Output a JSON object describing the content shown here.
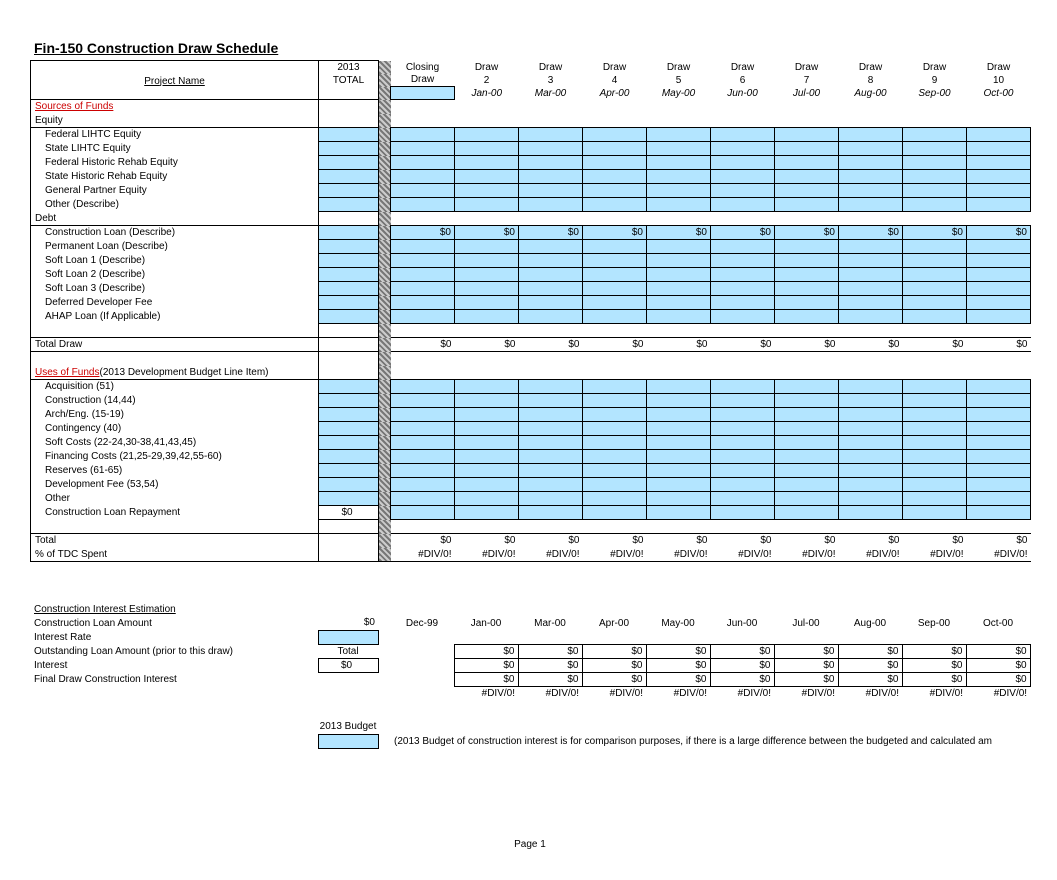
{
  "doc": {
    "title": "Fin-150 Construction Draw Schedule",
    "page_label": "Page 1",
    "project_name_label": "Project Name",
    "total_col_hdr1": "2013",
    "total_col_hdr2": "TOTAL",
    "draw_headers": [
      {
        "top": "Closing",
        "mid": "Draw",
        "bot": ""
      },
      {
        "top": "Draw",
        "mid": "2",
        "bot": "Jan-00"
      },
      {
        "top": "Draw",
        "mid": "3",
        "bot": "Mar-00"
      },
      {
        "top": "Draw",
        "mid": "4",
        "bot": "Apr-00"
      },
      {
        "top": "Draw",
        "mid": "5",
        "bot": "May-00"
      },
      {
        "top": "Draw",
        "mid": "6",
        "bot": "Jun-00"
      },
      {
        "top": "Draw",
        "mid": "7",
        "bot": "Jul-00"
      },
      {
        "top": "Draw",
        "mid": "8",
        "bot": "Aug-00"
      },
      {
        "top": "Draw",
        "mid": "9",
        "bot": "Sep-00"
      },
      {
        "top": "Draw",
        "mid": "10",
        "bot": "Oct-00"
      }
    ],
    "sources_hdr": "Sources of Funds",
    "equity_hdr": "Equity",
    "equity_rows": [
      "Federal LIHTC Equity",
      "State LIHTC Equity",
      "Federal Historic Rehab Equity",
      "State Historic Rehab Equity",
      "General Partner Equity",
      "Other (Describe)"
    ],
    "debt_hdr": "Debt",
    "debt_rows": [
      {
        "label": "Construction Loan (Describe)",
        "vals": [
          "$0",
          "$0",
          "$0",
          "$0",
          "$0",
          "$0",
          "$0",
          "$0",
          "$0",
          "$0"
        ]
      },
      {
        "label": "Permanent Loan (Describe)"
      },
      {
        "label": "Soft Loan 1 (Describe)"
      },
      {
        "label": "Soft Loan 2 (Describe)"
      },
      {
        "label": "Soft Loan 3 (Describe)"
      },
      {
        "label": "Deferred Developer Fee"
      },
      {
        "label": "AHAP Loan (If Applicable)"
      }
    ],
    "total_draw_label": "Total Draw",
    "total_draw_vals": [
      "$0",
      "$0",
      "$0",
      "$0",
      "$0",
      "$0",
      "$0",
      "$0",
      "$0",
      "$0"
    ],
    "uses_hdr": "Uses of Funds",
    "uses_suffix": "(2013 Development Budget Line Item)",
    "uses_rows": [
      "Acquisition (51)",
      "Construction (14,44)",
      "Arch/Eng. (15-19)",
      "Contingency (40)",
      "Soft Costs (22-24,30-38,41,43,45)",
      "Financing Costs (21,25-29,39,42,55-60)",
      "Reserves (61-65)",
      "Development Fee (53,54)",
      "Other"
    ],
    "clr_label": "Construction Loan Repayment",
    "clr_total": "$0",
    "total_label": "Total",
    "pct_label": "% of TDC Spent",
    "total_vals": [
      "$0",
      "$0",
      "$0",
      "$0",
      "$0",
      "$0",
      "$0",
      "$0",
      "$0",
      "$0"
    ],
    "pct_vals": [
      "#DIV/0!",
      "#DIV/0!",
      "#DIV/0!",
      "#DIV/0!",
      "#DIV/0!",
      "#DIV/0!",
      "#DIV/0!",
      "#DIV/0!",
      "#DIV/0!",
      "#DIV/0!"
    ],
    "interest": {
      "hdr": "Construction Interest Estimation",
      "loan_amt_label": "Construction Loan Amount",
      "loan_amt_val": "$0",
      "rate_label": "Interest Rate",
      "outstanding_label": "Outstanding Loan Amount (prior to this draw)",
      "total_label": "Total",
      "interest_label": "Interest",
      "interest_total": "$0",
      "final_label": "Final Draw Construction Interest",
      "months": [
        "Dec-99",
        "Jan-00",
        "Mar-00",
        "Apr-00",
        "May-00",
        "Jun-00",
        "Jul-00",
        "Aug-00",
        "Sep-00",
        "Oct-00"
      ],
      "outstanding_vals": [
        "",
        "$0",
        "$0",
        "$0",
        "$0",
        "$0",
        "$0",
        "$0",
        "$0",
        "$0"
      ],
      "interest_vals": [
        "",
        "$0",
        "$0",
        "$0",
        "$0",
        "$0",
        "$0",
        "$0",
        "$0",
        "$0"
      ],
      "final_vals": [
        "",
        "$0",
        "$0",
        "$0",
        "$0",
        "$0",
        "$0",
        "$0",
        "$0",
        "$0"
      ],
      "div_vals": [
        "",
        "#DIV/0!",
        "#DIV/0!",
        "#DIV/0!",
        "#DIV/0!",
        "#DIV/0!",
        "#DIV/0!",
        "#DIV/0!",
        "#DIV/0!",
        "#DIV/0!"
      ]
    },
    "legend_label": "2013 Budget",
    "legend_note": "(2013 Budget of construction interest is for comparison purposes, if there is a large difference between the budgeted and calculated am"
  },
  "colors": {
    "blue_fill": "#b3e5ff",
    "red": "#cc0000"
  }
}
